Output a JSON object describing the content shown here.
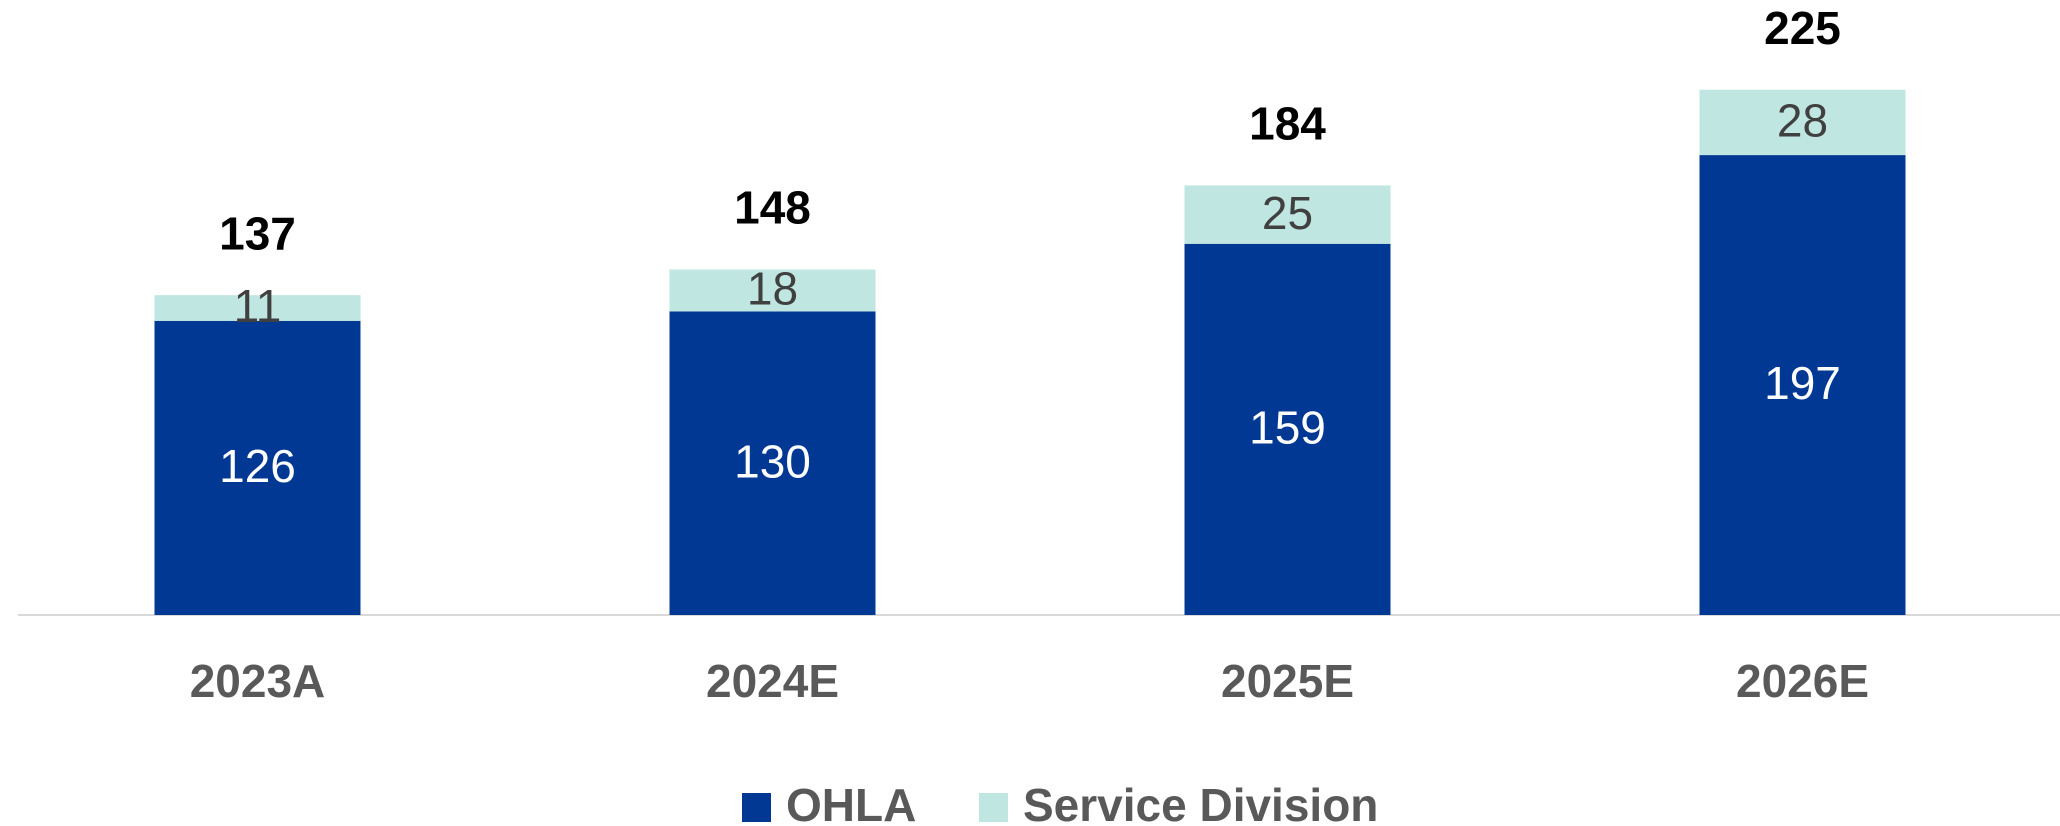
{
  "chart_data": {
    "type": "stacked_bar",
    "categories": [
      "2023A",
      "2024E",
      "2025E",
      "2026E"
    ],
    "series": [
      {
        "name": "OHLA",
        "color": "#003893",
        "values": [
          126,
          130,
          159,
          197
        ]
      },
      {
        "name": "Service Division",
        "color": "#c0e6e1",
        "values": [
          11,
          18,
          25,
          28
        ]
      }
    ],
    "totals": [
      137,
      148,
      184,
      225
    ],
    "ylim": [
      0,
      260
    ],
    "legend": "bottom"
  }
}
